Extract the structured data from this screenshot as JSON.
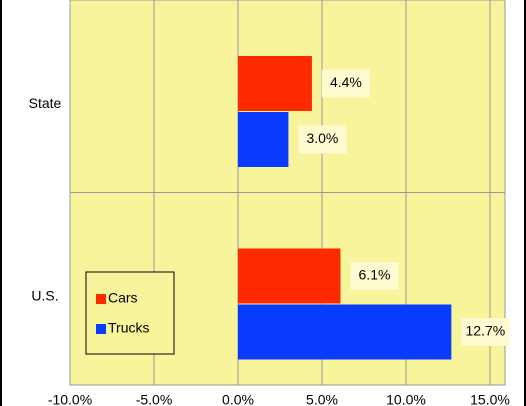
{
  "chart_data": {
    "type": "barh",
    "categories": [
      "State",
      "U.S."
    ],
    "series": [
      {
        "name": "Cars",
        "color": "#ff2a00",
        "values": [
          4.4,
          6.1
        ],
        "value_labels": [
          "4.4%",
          "6.1%"
        ]
      },
      {
        "name": "Trucks",
        "color": "#0a3cff",
        "values": [
          3.0,
          12.7
        ],
        "value_labels": [
          "3.0%",
          "12.7%"
        ]
      }
    ],
    "xlim": [
      -10,
      15
    ],
    "xticks": [
      {
        "value": -10,
        "label": "-10.0%"
      },
      {
        "value": -5,
        "label": "-5.0%"
      },
      {
        "value": 0,
        "label": "0.0%"
      },
      {
        "value": 5,
        "label": "5.0%"
      },
      {
        "value": 10,
        "label": "10.0%"
      },
      {
        "value": 15,
        "label": "15.0%"
      }
    ],
    "grid": true,
    "legend": "lower left"
  }
}
